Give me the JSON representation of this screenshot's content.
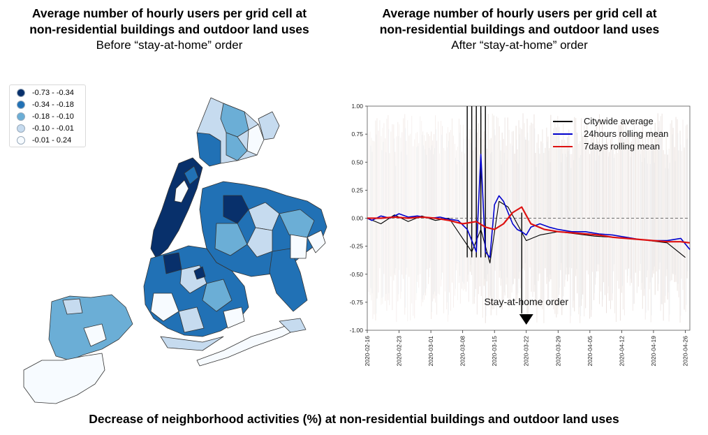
{
  "left_panel": {
    "title_line1": "Average number of hourly users per grid cell at",
    "title_line2": "non-residential buildings and outdoor land uses",
    "subtitle": "Before “stay-at-home” order",
    "legend": [
      {
        "label": "-0.73 - -0.34",
        "color": "#08306b"
      },
      {
        "label": "-0.34 - -0.18",
        "color": "#2171b5"
      },
      {
        "label": "-0.18 - -0.10",
        "color": "#6baed6"
      },
      {
        "label": "-0.10 - -0.01",
        "color": "#c6dbef"
      },
      {
        "label": "-0.01 - 0.24",
        "color": "#f7fbff"
      }
    ]
  },
  "right_panel": {
    "title_line1": "Average number of hourly users per grid cell at",
    "title_line2": "non-residential buildings and outdoor land uses",
    "subtitle": "After “stay-at-home” order"
  },
  "footer": {
    "caption": "Decrease of neighborhood activities (%) at non-residential buildings and outdoor land uses"
  },
  "chart_data": {
    "type": "line",
    "x_type": "date",
    "ylim": [
      -1.0,
      1.0
    ],
    "xlim": [
      "2020-02-16",
      "2020-04-27"
    ],
    "yticks": [
      "1.00",
      "0.75",
      "0.50",
      "0.25",
      "0.00",
      "-0.25",
      "-0.50",
      "-0.75",
      "-1.00"
    ],
    "xticks": [
      "2020-02-16",
      "2020-02-23",
      "2020-03-01",
      "2020-03-08",
      "2020-03-15",
      "2020-03-22",
      "2020-03-29",
      "2020-04-05",
      "2020-04-12",
      "2020-04-19",
      "2020-04-26"
    ],
    "reference_line": 0.0,
    "annotation": {
      "text": "Stay-at-home order",
      "date": "2020-03-22"
    },
    "legend_position": "top-right",
    "series": [
      {
        "name": "Citywide average",
        "color": "#000000",
        "x": [
          "2020-02-16",
          "2020-02-19",
          "2020-02-22",
          "2020-02-25",
          "2020-02-28",
          "2020-03-02",
          "2020-03-05",
          "2020-03-08",
          "2020-03-10",
          "2020-03-12",
          "2020-03-14",
          "2020-03-16",
          "2020-03-18",
          "2020-03-20",
          "2020-03-22",
          "2020-03-25",
          "2020-03-29",
          "2020-04-02",
          "2020-04-06",
          "2020-04-10",
          "2020-04-14",
          "2020-04-18",
          "2020-04-22",
          "2020-04-26"
        ],
        "values": [
          0.0,
          -0.05,
          0.03,
          -0.03,
          0.02,
          -0.02,
          0.0,
          -0.18,
          -0.3,
          -0.1,
          -0.4,
          0.15,
          0.1,
          -0.05,
          -0.2,
          -0.15,
          -0.12,
          -0.14,
          -0.16,
          -0.17,
          -0.18,
          -0.2,
          -0.22,
          -0.35
        ]
      },
      {
        "name": "24hours rolling mean",
        "color": "#0000cc",
        "x": [
          "2020-02-16",
          "2020-02-17",
          "2020-02-19",
          "2020-02-21",
          "2020-02-23",
          "2020-02-25",
          "2020-02-27",
          "2020-03-01",
          "2020-03-03",
          "2020-03-05",
          "2020-03-07",
          "2020-03-09",
          "2020-03-10",
          "2020-03-11",
          "2020-03-12",
          "2020-03-13",
          "2020-03-14",
          "2020-03-15",
          "2020-03-16",
          "2020-03-17",
          "2020-03-18",
          "2020-03-19",
          "2020-03-20",
          "2020-03-21",
          "2020-03-22",
          "2020-03-23",
          "2020-03-25",
          "2020-03-27",
          "2020-03-29",
          "2020-04-01",
          "2020-04-04",
          "2020-04-07",
          "2020-04-10",
          "2020-04-13",
          "2020-04-16",
          "2020-04-19",
          "2020-04-22",
          "2020-04-25",
          "2020-04-27"
        ],
        "values": [
          0.0,
          -0.02,
          0.02,
          0.0,
          0.04,
          0.01,
          0.02,
          0.0,
          0.01,
          -0.01,
          -0.02,
          -0.1,
          -0.2,
          -0.3,
          0.57,
          -0.3,
          -0.35,
          0.12,
          0.2,
          0.15,
          0.05,
          -0.05,
          -0.1,
          -0.12,
          -0.15,
          -0.08,
          -0.05,
          -0.08,
          -0.1,
          -0.12,
          -0.12,
          -0.14,
          -0.15,
          -0.17,
          -0.19,
          -0.2,
          -0.2,
          -0.18,
          -0.28
        ]
      },
      {
        "name": "7days rolling mean",
        "color": "#dd1111",
        "x": [
          "2020-02-16",
          "2020-02-19",
          "2020-02-22",
          "2020-02-25",
          "2020-02-28",
          "2020-03-02",
          "2020-03-05",
          "2020-03-08",
          "2020-03-11",
          "2020-03-13",
          "2020-03-15",
          "2020-03-17",
          "2020-03-19",
          "2020-03-21",
          "2020-03-23",
          "2020-03-26",
          "2020-03-29",
          "2020-04-01",
          "2020-04-04",
          "2020-04-07",
          "2020-04-10",
          "2020-04-13",
          "2020-04-16",
          "2020-04-19",
          "2020-04-22",
          "2020-04-25",
          "2020-04-27"
        ],
        "values": [
          0.0,
          0.0,
          0.01,
          0.0,
          0.01,
          0.0,
          -0.02,
          -0.05,
          -0.03,
          -0.08,
          -0.1,
          -0.05,
          0.05,
          0.1,
          -0.05,
          -0.1,
          -0.12,
          -0.13,
          -0.14,
          -0.15,
          -0.17,
          -0.18,
          -0.19,
          -0.2,
          -0.21,
          -0.21,
          -0.22
        ]
      }
    ]
  }
}
